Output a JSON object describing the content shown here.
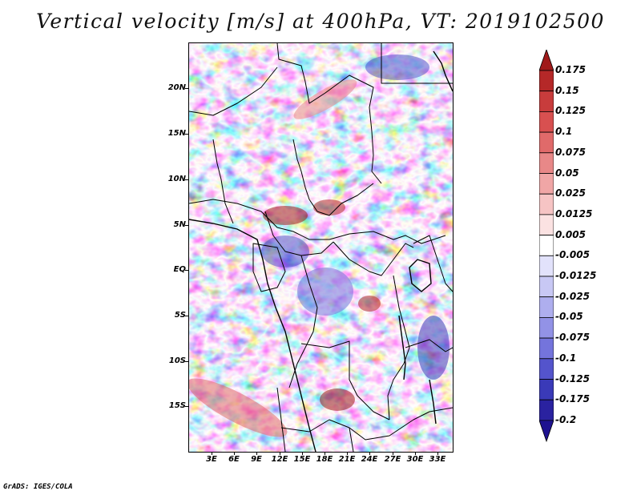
{
  "title": "Vertical velocity [m/s] at 400hPa, VT: 2019102500",
  "credit": "GrADS: IGES/COLA",
  "map": {
    "variable": "Vertical velocity",
    "units": "m/s",
    "level": "400hPa",
    "valid_time": "2019102500",
    "region": "Central and East Africa",
    "lat_labels": [
      "20N",
      "15N",
      "10N",
      "5N",
      "EQ",
      "5S",
      "10S",
      "15S"
    ],
    "lon_labels": [
      "3E",
      "6E",
      "9E",
      "12E",
      "15E",
      "18E",
      "21E",
      "24E",
      "27E",
      "30E",
      "33E"
    ]
  },
  "colorbar": {
    "labels": [
      "0.175",
      "0.15",
      "0.125",
      "0.1",
      "0.075",
      "0.05",
      "0.025",
      "0.0125",
      "0.005",
      "-0.005",
      "-0.0125",
      "-0.025",
      "-0.05",
      "-0.075",
      "-0.1",
      "-0.125",
      "-0.175",
      "-0.2"
    ],
    "colors": [
      "#a01a1a",
      "#b52828",
      "#c83c3c",
      "#d85050",
      "#e06a6a",
      "#e88888",
      "#f0a6a6",
      "#f6c4c4",
      "#fbe2e2",
      "#ffffff",
      "#e2e2fb",
      "#c8c8f4",
      "#aeaeee",
      "#9292e6",
      "#7474dc",
      "#5454cc",
      "#3a3ab8",
      "#2a22a0",
      "#1e1290"
    ]
  }
}
